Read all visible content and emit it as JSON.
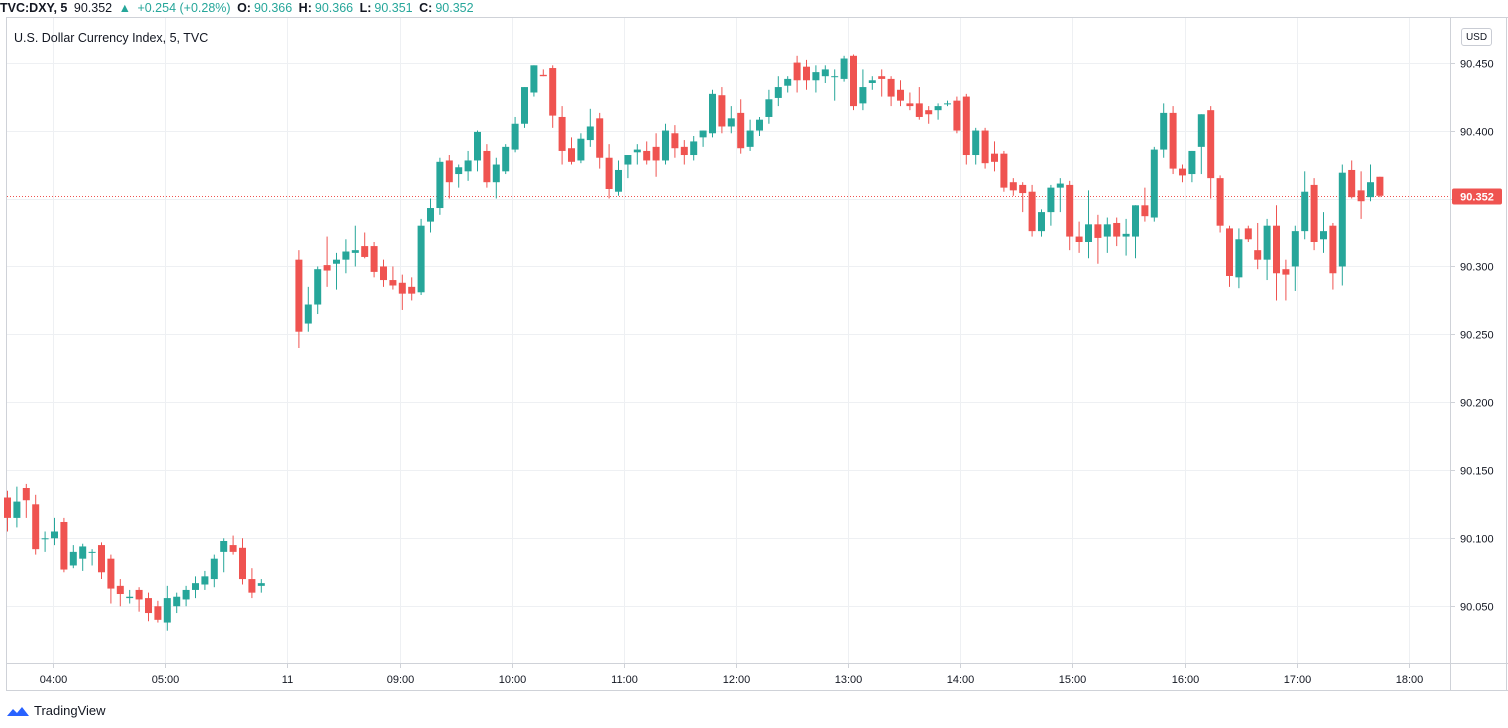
{
  "header": {
    "symbol": "TVC:DXY, 5",
    "last": "90.352",
    "arrow": "▲",
    "change": "+0.254 (+0.28%)",
    "o_label": "O:",
    "o_value": "90.366",
    "h_label": "H:",
    "h_value": "90.366",
    "l_label": "L:",
    "l_value": "90.351",
    "c_label": "C:",
    "c_value": "90.352"
  },
  "title": "U.S. Dollar Currency Index, 5, TVC",
  "currency_badge": "USD",
  "branding": "TradingView",
  "colors": {
    "up": "#26a69a",
    "down": "#ef5350",
    "grid": "#eef0f3",
    "price_line": "#ef5350"
  },
  "chart_data": {
    "type": "candlestick",
    "title": "U.S. Dollar Currency Index, 5, TVC",
    "ylim": [
      90.0,
      90.475
    ],
    "yticks": [
      "90.450",
      "90.400",
      "90.350",
      "90.300",
      "90.250",
      "90.200",
      "90.150",
      "90.100",
      "90.050"
    ],
    "xticks": [
      "04:00",
      "05:00",
      "11",
      "09:00",
      "10:00",
      "11:00",
      "12:00",
      "13:00",
      "14:00",
      "15:00",
      "16:00",
      "17:00",
      "18:00"
    ],
    "last_price": "90.352",
    "grid": true,
    "series": [
      {
        "values": [
          [
            90.13,
            90.135,
            90.105,
            90.115
          ],
          [
            90.115,
            90.138,
            90.108,
            90.127
          ],
          [
            90.137,
            90.14,
            90.115,
            90.128
          ],
          [
            90.125,
            90.132,
            90.088,
            90.092
          ],
          [
            90.1,
            90.105,
            90.09,
            90.1
          ],
          [
            90.1,
            90.115,
            90.095,
            90.105
          ],
          [
            90.112,
            90.115,
            90.075,
            90.077
          ],
          [
            90.08,
            90.095,
            90.078,
            90.09
          ],
          [
            90.085,
            90.096,
            90.076,
            90.094
          ],
          [
            90.09,
            90.092,
            90.08,
            90.09
          ],
          [
            90.095,
            90.097,
            90.07,
            90.075
          ],
          [
            90.085,
            90.088,
            90.052,
            90.063
          ],
          [
            90.065,
            90.07,
            90.05,
            90.059
          ],
          [
            90.056,
            90.062,
            90.052,
            90.057
          ],
          [
            90.062,
            90.064,
            90.046,
            90.055
          ],
          [
            90.056,
            90.06,
            90.039,
            90.045
          ],
          [
            90.05,
            90.054,
            90.038,
            90.04
          ],
          [
            90.038,
            90.065,
            90.032,
            90.056
          ],
          [
            90.05,
            90.06,
            90.045,
            90.057
          ],
          [
            90.055,
            90.065,
            90.05,
            90.062
          ],
          [
            90.062,
            90.072,
            90.056,
            90.067
          ],
          [
            90.066,
            90.076,
            90.062,
            90.072
          ],
          [
            90.07,
            90.088,
            90.064,
            90.085
          ],
          [
            90.09,
            90.1,
            90.075,
            90.098
          ],
          [
            90.095,
            90.102,
            90.088,
            90.09
          ],
          [
            90.093,
            90.1,
            90.066,
            90.07
          ],
          [
            90.07,
            90.078,
            90.056,
            90.06
          ],
          [
            90.065,
            90.07,
            90.06,
            90.067
          ],
          null,
          null,
          null,
          [
            90.305,
            90.312,
            90.24,
            90.252
          ],
          [
            90.258,
            90.285,
            90.252,
            90.272
          ],
          [
            90.272,
            90.3,
            90.265,
            90.298
          ],
          [
            90.301,
            90.322,
            90.285,
            90.297
          ],
          [
            90.302,
            90.31,
            90.283,
            90.305
          ],
          [
            90.305,
            90.32,
            90.295,
            90.311
          ],
          [
            90.31,
            90.33,
            90.3,
            90.312
          ],
          [
            90.315,
            90.325,
            90.306,
            90.307
          ],
          [
            90.315,
            90.318,
            90.292,
            90.296
          ],
          [
            90.3,
            90.305,
            90.285,
            90.29
          ],
          [
            90.29,
            90.3,
            90.283,
            90.286
          ],
          [
            90.288,
            90.294,
            90.268,
            90.28
          ],
          [
            90.285,
            90.292,
            90.275,
            90.28
          ],
          [
            90.281,
            90.335,
            90.279,
            90.33
          ],
          [
            90.333,
            90.35,
            90.325,
            90.343
          ],
          [
            90.343,
            90.38,
            90.338,
            90.377
          ],
          [
            90.378,
            90.382,
            90.35,
            90.362
          ],
          [
            90.368,
            90.375,
            90.358,
            90.373
          ],
          [
            90.37,
            90.385,
            90.363,
            90.378
          ],
          [
            90.378,
            90.4,
            90.37,
            90.399
          ],
          [
            90.385,
            90.39,
            90.358,
            90.362
          ],
          [
            90.362,
            90.38,
            90.35,
            90.375
          ],
          [
            90.37,
            90.39,
            90.368,
            90.388
          ],
          [
            90.386,
            90.41,
            90.384,
            90.405
          ],
          [
            90.405,
            90.432,
            90.402,
            90.432
          ],
          [
            90.428,
            90.448,
            90.425,
            90.448
          ],
          [
            90.441,
            90.445,
            90.44,
            90.44
          ],
          [
            90.446,
            90.448,
            90.402,
            90.411
          ],
          [
            90.41,
            90.418,
            90.375,
            90.385
          ],
          [
            90.387,
            90.395,
            90.375,
            90.377
          ],
          [
            90.378,
            90.398,
            90.376,
            90.394
          ],
          [
            90.393,
            90.416,
            90.388,
            90.403
          ],
          [
            90.409,
            90.413,
            90.372,
            90.38
          ],
          [
            90.38,
            90.39,
            90.35,
            90.357
          ],
          [
            90.355,
            90.378,
            90.352,
            90.371
          ],
          [
            90.375,
            90.382,
            90.365,
            90.382
          ],
          [
            90.384,
            90.39,
            90.375,
            90.386
          ],
          [
            90.385,
            90.392,
            90.375,
            90.378
          ],
          [
            90.388,
            90.398,
            90.366,
            90.378
          ],
          [
            90.378,
            90.405,
            90.375,
            90.4
          ],
          [
            90.398,
            90.404,
            90.38,
            90.387
          ],
          [
            90.388,
            90.393,
            90.375,
            90.382
          ],
          [
            90.382,
            90.396,
            90.378,
            90.392
          ],
          [
            90.395,
            90.4,
            90.388,
            90.4
          ],
          [
            90.398,
            90.43,
            90.395,
            90.427
          ],
          [
            90.426,
            90.432,
            90.398,
            90.403
          ],
          [
            90.403,
            90.418,
            90.398,
            90.409
          ],
          [
            90.413,
            90.423,
            90.383,
            90.387
          ],
          [
            90.388,
            90.408,
            90.385,
            90.4
          ],
          [
            90.4,
            90.41,
            90.396,
            90.408
          ],
          [
            90.41,
            90.43,
            90.405,
            90.423
          ],
          [
            90.424,
            90.44,
            90.418,
            90.432
          ],
          [
            90.433,
            90.44,
            90.428,
            90.438
          ],
          [
            90.45,
            90.455,
            90.428,
            90.437
          ],
          [
            90.447,
            90.452,
            90.43,
            90.437
          ],
          [
            90.437,
            90.448,
            90.428,
            90.443
          ],
          [
            90.44,
            90.448,
            90.435,
            90.445
          ],
          [
            90.44,
            90.445,
            90.422,
            90.44
          ],
          [
            90.438,
            90.455,
            90.436,
            90.453
          ],
          [
            90.455,
            90.456,
            90.415,
            90.418
          ],
          [
            90.42,
            90.445,
            90.415,
            90.432
          ],
          [
            90.435,
            90.44,
            90.43,
            90.437
          ],
          [
            90.44,
            90.445,
            90.425,
            90.438
          ],
          [
            90.438,
            90.44,
            90.418,
            90.425
          ],
          [
            90.43,
            90.437,
            90.418,
            90.422
          ],
          [
            90.42,
            90.428,
            90.415,
            90.418
          ],
          [
            90.42,
            90.432,
            90.408,
            90.41
          ],
          [
            90.415,
            90.418,
            90.405,
            90.412
          ],
          [
            90.415,
            90.42,
            90.408,
            90.418
          ],
          [
            90.42,
            90.422,
            90.418,
            90.42
          ],
          [
            90.422,
            90.425,
            90.398,
            90.4
          ],
          [
            90.425,
            90.427,
            90.375,
            90.382
          ],
          [
            90.382,
            90.402,
            90.375,
            90.4
          ],
          [
            90.4,
            90.402,
            90.372,
            90.376
          ],
          [
            90.383,
            90.392,
            90.37,
            90.377
          ],
          [
            90.383,
            90.385,
            90.355,
            90.358
          ],
          [
            90.362,
            90.365,
            90.352,
            90.356
          ],
          [
            90.36,
            90.362,
            90.34,
            90.354
          ],
          [
            90.355,
            90.36,
            90.322,
            90.326
          ],
          [
            90.326,
            90.342,
            90.322,
            90.34
          ],
          [
            90.34,
            90.36,
            90.33,
            90.358
          ],
          [
            90.358,
            90.365,
            90.34,
            90.361
          ],
          [
            90.36,
            90.363,
            90.312,
            90.322
          ],
          [
            90.322,
            90.333,
            90.31,
            90.318
          ],
          [
            90.318,
            90.356,
            90.306,
            90.331
          ],
          [
            90.331,
            90.338,
            90.302,
            90.321
          ],
          [
            90.322,
            90.336,
            90.31,
            90.331
          ],
          [
            90.332,
            90.336,
            90.315,
            90.322
          ],
          [
            90.322,
            90.335,
            90.308,
            90.324
          ],
          [
            90.322,
            90.345,
            90.306,
            90.345
          ],
          [
            90.345,
            90.358,
            90.333,
            90.337
          ],
          [
            90.336,
            90.388,
            90.333,
            90.386
          ],
          [
            90.386,
            90.42,
            90.38,
            90.413
          ],
          [
            90.413,
            90.418,
            90.368,
            90.372
          ],
          [
            90.372,
            90.375,
            90.362,
            90.367
          ],
          [
            90.368,
            90.385,
            90.362,
            90.385
          ],
          [
            90.388,
            90.412,
            90.368,
            90.412
          ],
          [
            90.415,
            90.418,
            90.35,
            90.365
          ],
          [
            90.365,
            90.367,
            90.325,
            90.33
          ],
          [
            90.328,
            90.33,
            90.285,
            90.293
          ],
          [
            90.292,
            90.328,
            90.284,
            90.32
          ],
          [
            90.328,
            90.33,
            90.318,
            90.32
          ],
          [
            90.312,
            90.332,
            90.298,
            90.305
          ],
          [
            90.305,
            90.335,
            90.29,
            90.33
          ],
          [
            90.33,
            90.345,
            90.275,
            90.295
          ],
          [
            90.298,
            90.305,
            90.275,
            90.294
          ],
          [
            90.3,
            90.33,
            90.282,
            90.326
          ],
          [
            90.326,
            90.37,
            90.32,
            90.355
          ],
          [
            90.36,
            90.365,
            90.312,
            90.318
          ],
          [
            90.32,
            90.34,
            90.31,
            90.326
          ],
          [
            90.33,
            90.332,
            90.283,
            90.295
          ],
          [
            90.3,
            90.375,
            90.286,
            90.369
          ],
          [
            90.371,
            90.378,
            90.35,
            90.351
          ],
          [
            90.356,
            90.37,
            90.335,
            90.348
          ],
          [
            90.351,
            90.375,
            90.348,
            90.362
          ],
          [
            90.366,
            90.366,
            90.351,
            90.352
          ]
        ]
      }
    ]
  }
}
